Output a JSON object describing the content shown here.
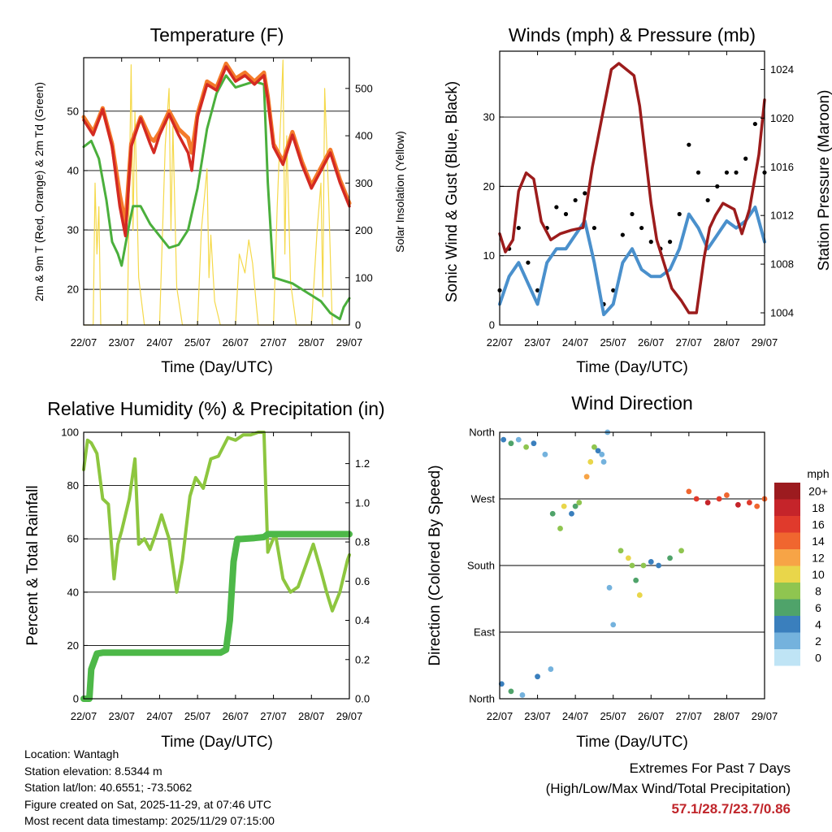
{
  "panels": {
    "temperature": {
      "title": "Temperature (F)",
      "ylabel_left": "2m & 9m T (Red, Orange) & 2m Td (Green)",
      "ylabel_right": "Solar Insolation (Yellow)",
      "xlabel": "Time (Day/UTC)"
    },
    "winds": {
      "title": "Winds (mph) & Pressure (mb)",
      "ylabel_left": "Sonic Wind & Gust (Blue, Black)",
      "ylabel_right": "Station Pressure (Maroon)",
      "xlabel": "Time (Day/UTC)"
    },
    "humidity": {
      "title": "Relative Humidity (%) & Precipitation (in)",
      "ylabel_left": "Percent & Total Rainfall",
      "xlabel": "Time (Day/UTC)"
    },
    "direction": {
      "title": "Wind Direction",
      "ylabel_left": "Direction (Colored By Speed)",
      "xlabel": "Time (Day/UTC)"
    }
  },
  "colorbar": {
    "title": "mph",
    "labels": [
      "20+",
      "18",
      "16",
      "14",
      "12",
      "10",
      "8",
      "6",
      "4",
      "2",
      "0"
    ],
    "colors": [
      "#9c1b1f",
      "#c5242a",
      "#e03a2c",
      "#f0662f",
      "#f7a446",
      "#e9d64a",
      "#8fc550",
      "#4fa36a",
      "#3a7fbd",
      "#74b2dd",
      "#bfe4f5"
    ]
  },
  "station_info": [
    "Location: Wantagh",
    "Station elevation: 8.5344 m",
    "Station lat/lon: 40.6551; -73.5062",
    "Figure created on Sat, 2025-11-29, at 07:46 UTC",
    "Most recent data timestamp: 2025/11/29 07:15:00"
  ],
  "extremes": {
    "line1": "Extremes For Past 7 Days",
    "line2": "(High/Low/Max Wind/Total Precipitation)",
    "values": "57.1/28.7/23.7/0.86"
  },
  "colors": {
    "temp_2m": "#d42a22",
    "temp_9m": "#f47a2a",
    "dewpoint": "#4aaf3c",
    "solar": "#f5d94a",
    "wind": "#4a90cc",
    "gust": "#000000",
    "pressure": "#9c1c1c",
    "rh": "#8dc63f",
    "precip": "#4db848"
  },
  "chart_data": [
    {
      "type": "line",
      "title": "Temperature (F)",
      "xlabel": "Time (Day/UTC)",
      "xlim": [
        0,
        7
      ],
      "xticks": [
        "22/07",
        "23/07",
        "24/07",
        "25/07",
        "26/07",
        "27/07",
        "28/07",
        "29/07"
      ],
      "ylim": [
        14,
        59
      ],
      "yticks": [
        20,
        30,
        40,
        50
      ],
      "ylim_right": [
        0,
        565
      ],
      "yticks_right": [
        0,
        100,
        200,
        300,
        400,
        500
      ],
      "series": [
        {
          "name": "2m T",
          "axis": "left",
          "x": [
            0,
            0.25,
            0.5,
            0.75,
            0.95,
            1.1,
            1.25,
            1.5,
            1.75,
            1.85,
            2.0,
            2.25,
            2.5,
            2.75,
            2.85,
            3.0,
            3.25,
            3.5,
            3.75,
            4.0,
            4.25,
            4.5,
            4.75,
            4.85,
            5.0,
            5.25,
            5.5,
            5.75,
            6.0,
            6.25,
            6.5,
            6.75,
            7.0
          ],
          "values": [
            48.5,
            46,
            50.3,
            44,
            34,
            29,
            44,
            48.8,
            44.5,
            43,
            46,
            49.5,
            46,
            43,
            40,
            49,
            54.5,
            53.5,
            57.5,
            55,
            56,
            54.5,
            56,
            52,
            44,
            41,
            46,
            41,
            37,
            40,
            43,
            38,
            34
          ]
        },
        {
          "name": "9m T",
          "axis": "left",
          "x": [
            0,
            0.25,
            0.5,
            0.75,
            0.95,
            1.1,
            1.25,
            1.5,
            1.75,
            1.85,
            2.0,
            2.25,
            2.5,
            2.75,
            2.85,
            3.0,
            3.25,
            3.5,
            3.75,
            4.0,
            4.25,
            4.5,
            4.75,
            4.85,
            5.0,
            5.25,
            5.5,
            5.75,
            6.0,
            6.25,
            6.5,
            6.75,
            7.0
          ],
          "values": [
            49,
            46.5,
            50.5,
            44.5,
            36,
            31,
            44.5,
            49,
            45.5,
            45,
            46.5,
            50,
            47,
            45.5,
            43,
            49.5,
            55,
            54,
            58,
            55.5,
            56.5,
            55,
            56.5,
            52.5,
            44.5,
            41.5,
            46.5,
            41.5,
            37.5,
            40.5,
            43.5,
            38.5,
            34.5
          ]
        },
        {
          "name": "2m Td",
          "axis": "left",
          "x": [
            0,
            0.2,
            0.4,
            0.6,
            0.75,
            0.9,
            1.0,
            1.2,
            1.3,
            1.5,
            1.75,
            2.0,
            2.25,
            2.5,
            2.75,
            3.0,
            3.25,
            3.5,
            3.75,
            4.0,
            4.25,
            4.5,
            4.75,
            4.85,
            5.0,
            5.25,
            5.5,
            5.75,
            6.0,
            6.25,
            6.5,
            6.75,
            6.85,
            7.0
          ],
          "values": [
            44,
            45,
            42,
            35,
            28,
            26,
            24,
            31,
            34,
            34,
            31,
            29,
            27,
            27.5,
            30,
            37,
            47,
            53,
            56,
            54,
            54.5,
            55,
            54.5,
            38,
            22,
            21.5,
            21,
            20,
            19,
            18,
            16,
            15,
            17,
            18.5
          ]
        },
        {
          "name": "Solar Insolation",
          "axis": "right",
          "x": [
            0,
            0.25,
            0.3,
            0.35,
            0.4,
            0.45,
            0.75,
            1.15,
            1.25,
            1.3,
            1.35,
            1.45,
            1.6,
            2.0,
            2.15,
            2.25,
            2.3,
            2.35,
            2.45,
            2.6,
            3.0,
            3.1,
            3.25,
            3.3,
            3.35,
            3.45,
            3.6,
            4.0,
            4.1,
            4.25,
            4.35,
            4.45,
            4.55,
            4.6,
            5.0,
            5.1,
            5.25,
            5.3,
            5.35,
            5.45,
            5.6,
            6.0,
            6.15,
            6.25,
            6.3,
            6.35,
            6.45,
            6.55,
            7.0
          ],
          "values": [
            0,
            0,
            300,
            150,
            250,
            0,
            0,
            0,
            550,
            200,
            450,
            100,
            0,
            0,
            380,
            500,
            200,
            420,
            80,
            0,
            0,
            200,
            330,
            100,
            190,
            50,
            0,
            0,
            150,
            110,
            180,
            130,
            40,
            0,
            0,
            250,
            560,
            150,
            400,
            90,
            0,
            0,
            200,
            300,
            60,
            500,
            280,
            0,
            0
          ]
        }
      ]
    },
    {
      "type": "line",
      "title": "Winds (mph) & Pressure (mb)",
      "xlabel": "Time (Day/UTC)",
      "xlim": [
        0,
        7
      ],
      "xticks": [
        "22/07",
        "23/07",
        "24/07",
        "25/07",
        "26/07",
        "27/07",
        "28/07",
        "29/07"
      ],
      "ylim": [
        0,
        39.5
      ],
      "yticks": [
        0,
        10,
        20,
        30
      ],
      "ylim_right": [
        1003,
        1025.5
      ],
      "yticks_right": [
        1004,
        1008,
        1012,
        1016,
        1020,
        1024
      ],
      "series": [
        {
          "name": "Sonic Wind",
          "axis": "left",
          "x": [
            0,
            0.25,
            0.5,
            0.75,
            1.0,
            1.25,
            1.5,
            1.75,
            2.0,
            2.25,
            2.5,
            2.75,
            3.0,
            3.25,
            3.5,
            3.75,
            4.0,
            4.25,
            4.5,
            4.75,
            5.0,
            5.25,
            5.5,
            5.75,
            6.0,
            6.25,
            6.5,
            6.75,
            7.0
          ],
          "values": [
            3,
            7,
            9,
            6,
            3,
            9,
            11,
            11,
            13,
            15,
            9,
            1.5,
            3,
            9,
            11,
            8,
            7,
            7,
            8,
            11,
            16,
            14,
            11,
            13,
            15,
            14,
            15,
            17,
            12
          ]
        },
        {
          "name": "Gust",
          "axis": "left",
          "x": [
            0,
            0.25,
            0.5,
            0.75,
            1.0,
            1.25,
            1.5,
            1.75,
            2.0,
            2.25,
            2.5,
            2.75,
            3.0,
            3.25,
            3.5,
            3.75,
            4.0,
            4.25,
            4.5,
            4.75,
            5.0,
            5.25,
            5.5,
            5.75,
            6.0,
            6.25,
            6.5,
            6.75,
            7.0
          ],
          "values": [
            5,
            11,
            14,
            9,
            5,
            14,
            17,
            16,
            18,
            19,
            14,
            3,
            5,
            13,
            16,
            14,
            12,
            11,
            12,
            16,
            26,
            22,
            18,
            20,
            22,
            22,
            24,
            29,
            22
          ]
        },
        {
          "name": "Station Pressure",
          "axis": "right",
          "x": [
            0,
            0.15,
            0.35,
            0.5,
            0.7,
            0.9,
            1.1,
            1.35,
            1.6,
            1.9,
            2.2,
            2.45,
            2.7,
            2.95,
            3.15,
            3.35,
            3.55,
            3.7,
            3.85,
            4.0,
            4.15,
            4.35,
            4.55,
            4.8,
            5.0,
            5.2,
            5.4,
            5.55,
            5.7,
            5.9,
            6.2,
            6.4,
            6.6,
            6.85,
            7.0
          ],
          "values": [
            1010.5,
            1009,
            1010,
            1014,
            1015.5,
            1015,
            1011.5,
            1010,
            1010.5,
            1010.8,
            1011,
            1016,
            1020,
            1024,
            1024.5,
            1024,
            1023.5,
            1021,
            1017,
            1013,
            1010,
            1008,
            1006,
            1005,
            1004,
            1004,
            1008.5,
            1011,
            1012,
            1013,
            1012.5,
            1010.5,
            1012.5,
            1017,
            1021.5
          ]
        }
      ]
    },
    {
      "type": "line",
      "title": "Relative Humidity (%) & Precipitation (in)",
      "xlabel": "Time (Day/UTC)",
      "xlim": [
        0,
        7
      ],
      "xticks": [
        "22/07",
        "23/07",
        "24/07",
        "25/07",
        "26/07",
        "27/07",
        "28/07",
        "29/07"
      ],
      "ylim": [
        0,
        100
      ],
      "yticks": [
        0,
        20,
        40,
        60,
        80,
        100
      ],
      "ylim_right": [
        0,
        1.36
      ],
      "yticks_right": [
        "0.0",
        "0.2",
        "0.4",
        "0.6",
        "0.8",
        "1.0",
        "1.2"
      ],
      "series": [
        {
          "name": "Relative Humidity",
          "axis": "left",
          "x": [
            0,
            0.1,
            0.2,
            0.35,
            0.5,
            0.65,
            0.8,
            0.9,
            1.0,
            1.2,
            1.35,
            1.45,
            1.6,
            1.75,
            1.9,
            2.05,
            2.25,
            2.45,
            2.6,
            2.8,
            2.95,
            3.15,
            3.35,
            3.55,
            3.8,
            4.0,
            4.2,
            4.4,
            4.6,
            4.75,
            4.85,
            5.05,
            5.25,
            5.45,
            5.65,
            5.85,
            6.05,
            6.25,
            6.4,
            6.55,
            6.75,
            6.95,
            7.0
          ],
          "values": [
            86,
            97,
            96,
            92,
            75,
            73,
            45,
            58,
            63,
            75,
            90,
            58,
            60,
            56,
            62,
            69,
            60,
            40,
            52,
            76,
            83,
            79,
            90,
            91,
            98,
            97,
            99,
            99,
            100,
            100,
            55,
            62,
            45,
            40,
            42,
            50,
            58,
            48,
            40,
            33,
            40,
            52,
            54
          ]
        },
        {
          "name": "Total Rainfall",
          "axis": "right",
          "x": [
            0,
            0.15,
            0.2,
            0.35,
            0.5,
            1.0,
            2.0,
            3.0,
            3.6,
            3.75,
            3.85,
            3.95,
            4.05,
            4.15,
            4.5,
            4.75,
            4.85,
            5.5,
            6.0,
            7.0
          ],
          "values": [
            0,
            0,
            0.15,
            0.23,
            0.235,
            0.235,
            0.235,
            0.235,
            0.235,
            0.25,
            0.4,
            0.7,
            0.815,
            0.815,
            0.82,
            0.825,
            0.84,
            0.84,
            0.84,
            0.84
          ]
        }
      ]
    },
    {
      "type": "scatter",
      "title": "Wind Direction",
      "xlabel": "Time (Day/UTC)",
      "xlim": [
        0,
        7
      ],
      "xticks": [
        "22/07",
        "23/07",
        "24/07",
        "25/07",
        "26/07",
        "27/07",
        "28/07",
        "29/07"
      ],
      "ylim": [
        0,
        360
      ],
      "yticks": [
        "North",
        "East",
        "South",
        "West",
        "North"
      ],
      "ytick_values": [
        0,
        90,
        180,
        270,
        360
      ],
      "colorbar_label": "mph",
      "series": [
        {
          "name": "Direction",
          "x": [
            0.1,
            0.3,
            0.5,
            0.7,
            0.9,
            1.2,
            1.4,
            1.6,
            1.7,
            1.9,
            2.0,
            2.1,
            2.3,
            2.4,
            2.5,
            2.6,
            2.7,
            2.85,
            3.2,
            3.4,
            3.5,
            3.6,
            3.7,
            3.8,
            4.0,
            4.2,
            4.5,
            4.8,
            5.0,
            5.2,
            5.5,
            5.8,
            6.0,
            6.3,
            6.6,
            6.8,
            7.0,
            0.05,
            0.3,
            0.6,
            1.0,
            1.35,
            2.75,
            2.9,
            3.0
          ],
          "values": [
            350,
            345,
            350,
            340,
            345,
            330,
            250,
            230,
            260,
            250,
            260,
            265,
            300,
            320,
            340,
            335,
            330,
            360,
            200,
            190,
            180,
            160,
            140,
            180,
            185,
            180,
            190,
            200,
            280,
            270,
            265,
            270,
            275,
            262,
            265,
            260,
            270,
            20,
            10,
            5,
            30,
            40,
            320,
            150,
            100
          ],
          "speeds": [
            4,
            6,
            3,
            8,
            4,
            3,
            6,
            8,
            10,
            5,
            6,
            9,
            12,
            10,
            8,
            4,
            3,
            2,
            8,
            11,
            8,
            7,
            10,
            8,
            5,
            4,
            6,
            8,
            15,
            17,
            18,
            16,
            14,
            18,
            17,
            15,
            14,
            4,
            6,
            2,
            5,
            2,
            3,
            2,
            2
          ]
        }
      ]
    }
  ]
}
